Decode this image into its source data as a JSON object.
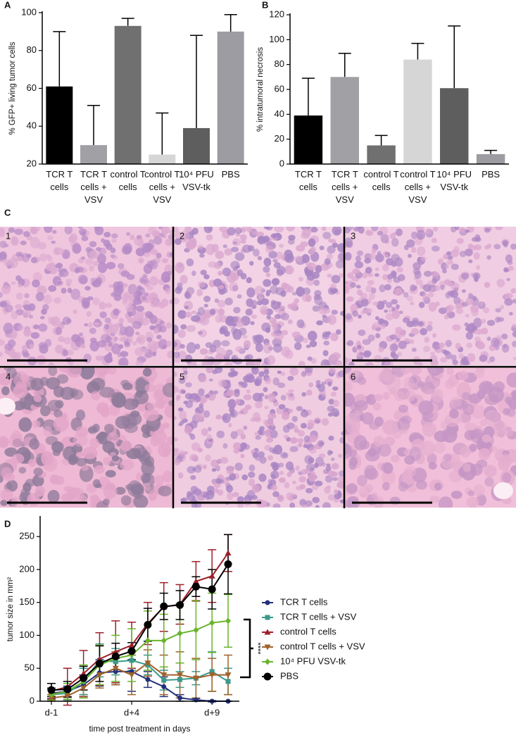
{
  "panel_labels": {
    "a": "A",
    "b": "B",
    "c": "C",
    "d": "D"
  },
  "micrographs": [
    "1",
    "2",
    "3",
    "4",
    "5",
    "6"
  ],
  "chart_data": [
    {
      "type": "bar",
      "y_label": "% GFP+ living tumor cells",
      "categories": [
        "TCR T cells",
        "TCR T cells + VSV",
        "control T cells",
        "control T cells + VSV",
        "10⁴ PFU VSV-tk",
        "PBS"
      ],
      "values": [
        61,
        30,
        93,
        25,
        39,
        90
      ],
      "errors": [
        29,
        21,
        4,
        22,
        49,
        9
      ],
      "colors": [
        "#000000",
        "#a0a0a5",
        "#707070",
        "#d6d6d6",
        "#5e5e5e",
        "#9c9ca2"
      ],
      "ylim": [
        20,
        100
      ],
      "yticks": [
        20,
        40,
        60,
        80,
        100
      ]
    },
    {
      "type": "bar",
      "y_label": "% intratumoral necrosis",
      "categories": [
        "TCR T cells",
        "TCR T cells + VSV",
        "control T cells",
        "control T cells + VSV",
        "10⁴ PFU VSV-tk",
        "PBS"
      ],
      "values": [
        39,
        70,
        15,
        84,
        61,
        8
      ],
      "errors": [
        30,
        19,
        8,
        13,
        50,
        3
      ],
      "colors": [
        "#000000",
        "#a0a0a5",
        "#707070",
        "#d6d6d6",
        "#5e5e5e",
        "#9c9ca2"
      ],
      "ylim": [
        0,
        120
      ],
      "yticks": [
        0,
        20,
        40,
        60,
        80,
        100,
        120
      ]
    },
    {
      "type": "line",
      "y_label": "tumor size in mm²",
      "x_label": "time post treatment in days",
      "x": [
        -1,
        0,
        1,
        2,
        3,
        4,
        5,
        6,
        7,
        8,
        9,
        10
      ],
      "xlim": [
        -1.7,
        10.7
      ],
      "xticks": [
        {
          "value": -1,
          "label": "d-1"
        },
        {
          "value": 4,
          "label": "d+4"
        },
        {
          "value": 9,
          "label": "d+9"
        }
      ],
      "ylim": [
        0,
        279
      ],
      "yticks": [
        0,
        50,
        100,
        150,
        200,
        250
      ],
      "legend": "right",
      "annotation": "****",
      "series": [
        {
          "name": "TCR T cells",
          "color": "#23307a",
          "marker": "circle",
          "values": [
            12,
            15,
            25,
            43,
            45,
            45,
            33,
            22,
            5,
            2,
            0,
            0
          ],
          "errors": [
            8,
            8,
            15,
            20,
            20,
            30,
            12,
            15,
            5,
            2,
            1,
            0
          ]
        },
        {
          "name": "TCR T cells + VSV",
          "color": "#3a9a8c",
          "marker": "square",
          "values": [
            10,
            12,
            30,
            62,
            60,
            62,
            55,
            32,
            33,
            35,
            45,
            30
          ],
          "errors": [
            8,
            10,
            20,
            25,
            20,
            15,
            15,
            15,
            12,
            10,
            30,
            20
          ]
        },
        {
          "name": "control T cells",
          "color": "#9e1f2a",
          "marker": "triangle-up",
          "values": [
            15,
            22,
            42,
            64,
            75,
            85,
            118,
            143,
            147,
            182,
            190,
            225
          ],
          "errors": [
            12,
            28,
            35,
            40,
            47,
            35,
            32,
            37,
            30,
            30,
            40,
            28
          ]
        },
        {
          "name": "control T cells + VSV",
          "color": "#a0622b",
          "marker": "triangle-down",
          "values": [
            5,
            8,
            20,
            40,
            50,
            40,
            58,
            40,
            40,
            35,
            40,
            40
          ],
          "errors": [
            5,
            8,
            15,
            20,
            25,
            30,
            20,
            30,
            35,
            30,
            25,
            30
          ]
        },
        {
          "name": "10⁴ PFU VSV-tk",
          "color": "#6ab42b",
          "marker": "diamond",
          "values": [
            10,
            15,
            30,
            55,
            65,
            70,
            92,
            92,
            103,
            108,
            119,
            122
          ],
          "errors": [
            8,
            12,
            25,
            30,
            35,
            40,
            45,
            40,
            45,
            45,
            45,
            40
          ]
        },
        {
          "name": "PBS",
          "color": "#000000",
          "marker": "big-circle",
          "values": [
            17,
            18,
            35,
            57,
            68,
            76,
            116,
            144,
            146,
            174,
            170,
            208
          ],
          "errors": [
            10,
            12,
            18,
            27,
            20,
            13,
            25,
            20,
            22,
            15,
            30,
            45
          ]
        }
      ]
    }
  ]
}
